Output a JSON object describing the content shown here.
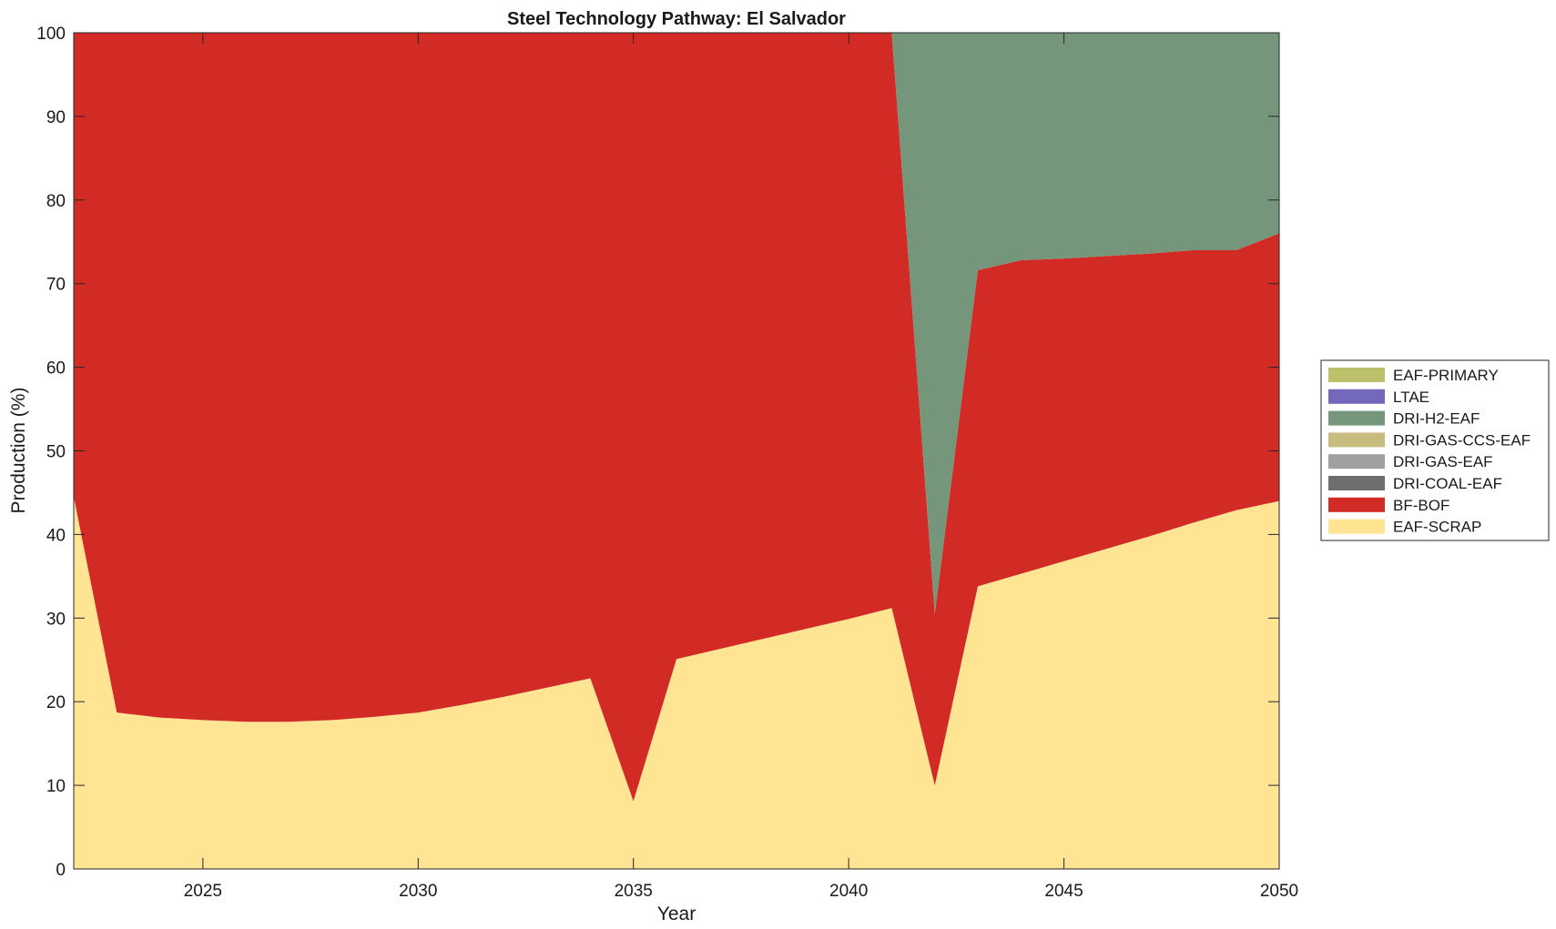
{
  "chart_data": {
    "type": "area",
    "stacked": true,
    "title": "Steel Technology Pathway: El Salvador",
    "xlabel": "Year",
    "ylabel": "Production (%)",
    "xlim": [
      2022,
      2050
    ],
    "ylim": [
      0,
      100
    ],
    "xticks": [
      2025,
      2030,
      2035,
      2040,
      2045,
      2050
    ],
    "yticks": [
      0,
      10,
      20,
      30,
      40,
      50,
      60,
      70,
      80,
      90,
      100
    ],
    "grid": false,
    "legend_position": "right",
    "x": [
      2022,
      2023,
      2024,
      2025,
      2026,
      2027,
      2028,
      2029,
      2030,
      2031,
      2032,
      2033,
      2034,
      2035,
      2036,
      2037,
      2038,
      2039,
      2040,
      2041,
      2042,
      2043,
      2044,
      2045,
      2046,
      2047,
      2048,
      2049,
      2050
    ],
    "series": [
      {
        "name": "EAF-SCRAP",
        "color": "#FFE494",
        "values": [
          44.5,
          18.7,
          18.1,
          17.8,
          17.6,
          17.6,
          17.8,
          18.2,
          18.7,
          19.6,
          20.6,
          21.7,
          22.8,
          8.1,
          25.1,
          26.3,
          27.5,
          28.7,
          29.9,
          31.2,
          10.0,
          33.8,
          35.3,
          36.8,
          38.3,
          39.8,
          41.4,
          42.9,
          44.0
        ]
      },
      {
        "name": "BF-BOF",
        "color": "#D22A24",
        "values": [
          55.5,
          81.3,
          81.9,
          82.2,
          82.4,
          82.4,
          82.2,
          81.8,
          81.3,
          80.4,
          79.4,
          78.3,
          77.2,
          91.9,
          74.9,
          73.7,
          72.5,
          71.3,
          70.1,
          68.8,
          20.5,
          37.8,
          37.5,
          36.2,
          35.0,
          33.8,
          32.6,
          31.1,
          32.0
        ]
      },
      {
        "name": "DRI-COAL-EAF",
        "color": "#6E6E6E",
        "values": [
          0,
          0,
          0,
          0,
          0,
          0,
          0,
          0,
          0,
          0,
          0,
          0,
          0,
          0,
          0,
          0,
          0,
          0,
          0,
          0,
          0,
          0,
          0,
          0,
          0,
          0,
          0,
          0,
          0
        ]
      },
      {
        "name": "DRI-GAS-EAF",
        "color": "#A0A0A0",
        "values": [
          0,
          0,
          0,
          0,
          0,
          0,
          0,
          0,
          0,
          0,
          0,
          0,
          0,
          0,
          0,
          0,
          0,
          0,
          0,
          0,
          0,
          0,
          0,
          0,
          0,
          0,
          0,
          0,
          0
        ]
      },
      {
        "name": "DRI-GAS-CCS-EAF",
        "color": "#C5BC7E",
        "values": [
          0,
          0,
          0,
          0,
          0,
          0,
          0,
          0,
          0,
          0,
          0,
          0,
          0,
          0,
          0,
          0,
          0,
          0,
          0,
          0,
          0,
          0,
          0,
          0,
          0,
          0,
          0,
          0,
          0
        ]
      },
      {
        "name": "DRI-H2-EAF",
        "color": "#75967B",
        "values": [
          0,
          0,
          0,
          0,
          0,
          0,
          0,
          0,
          0,
          0,
          0,
          0,
          0,
          0,
          0,
          0,
          0,
          0,
          0,
          0,
          69.5,
          28.4,
          27.2,
          27.0,
          26.7,
          26.4,
          26.0,
          26.0,
          24.0
        ]
      },
      {
        "name": "LTAE",
        "color": "#7468BC",
        "values": [
          0,
          0,
          0,
          0,
          0,
          0,
          0,
          0,
          0,
          0,
          0,
          0,
          0,
          0,
          0,
          0,
          0,
          0,
          0,
          0,
          0,
          0,
          0,
          0,
          0,
          0,
          0,
          0,
          0
        ]
      },
      {
        "name": "EAF-PRIMARY",
        "color": "#BCC06B",
        "values": [
          0,
          0,
          0,
          0,
          0,
          0,
          0,
          0,
          0,
          0,
          0,
          0,
          0,
          0,
          0,
          0,
          0,
          0,
          0,
          0,
          0,
          0,
          0,
          0,
          0,
          0,
          0,
          0,
          0
        ]
      }
    ],
    "legend_order": [
      "EAF-PRIMARY",
      "LTAE",
      "DRI-H2-EAF",
      "DRI-GAS-CCS-EAF",
      "DRI-GAS-EAF",
      "DRI-COAL-EAF",
      "BF-BOF",
      "EAF-SCRAP"
    ]
  }
}
